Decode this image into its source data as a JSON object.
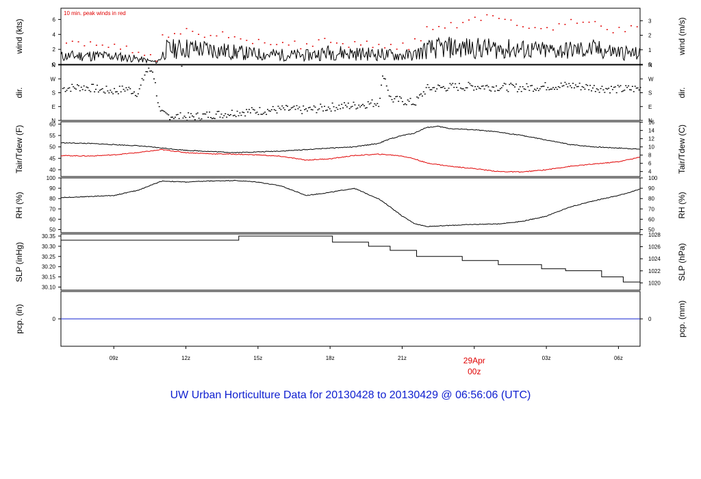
{
  "title": "UW Urban Horticulture Data for 20130428  to  20130429 @ 06:56:06  (UTC)",
  "note": "10 min. peak winds in red",
  "colors": {
    "peak": "#e00000",
    "tdew": "#e00000",
    "line": "#000000",
    "title": "#1020d0",
    "pcp": "#1020d0",
    "day": "#e00000"
  },
  "x_axis": {
    "ticks": [
      {
        "h": 9,
        "label": "09z"
      },
      {
        "h": 12,
        "label": "12z"
      },
      {
        "h": 15,
        "label": "15z"
      },
      {
        "h": 18,
        "label": "18z"
      },
      {
        "h": 21,
        "label": "21z"
      },
      {
        "h": 27,
        "label": "03z"
      },
      {
        "h": 30,
        "label": "06z"
      }
    ],
    "day_marker": {
      "h": 24,
      "date": "29Apr",
      "time": "00z"
    }
  },
  "chart_data": [
    {
      "type": "line",
      "id": "wind",
      "ylabel": "wind (kts)",
      "ylabel_right": "wind (m/s)",
      "ylim": [
        0,
        7.5
      ],
      "yticks": [
        0,
        2,
        4,
        6
      ],
      "ylim_right": [
        0,
        3.86
      ],
      "yticks_right": [
        0,
        1,
        2,
        3
      ],
      "series": [
        {
          "name": "wind",
          "x": [
            6.8,
            8,
            9,
            10,
            10.8,
            11.2,
            12,
            13,
            14,
            15,
            16,
            17,
            18,
            19,
            20,
            21,
            21.5,
            22,
            23,
            24,
            25,
            26,
            27,
            28,
            29,
            30,
            30.9
          ],
          "y": [
            1.2,
            1.3,
            1.2,
            0.8,
            0.3,
            2.2,
            2.4,
            2.2,
            1.8,
            1.5,
            1.4,
            1.3,
            1.8,
            1.6,
            1.5,
            1.3,
            1.4,
            2.2,
            2.5,
            2.4,
            2.3,
            2.2,
            2.0,
            2.1,
            2.2,
            1.8,
            1.5
          ]
        }
      ],
      "peak_winds": {
        "x": [
          7,
          7.5,
          8,
          8.5,
          9,
          9.5,
          10,
          10.5,
          11,
          11.5,
          12,
          12.5,
          13,
          13.5,
          14,
          14.5,
          15,
          15.5,
          16,
          16.5,
          17,
          17.5,
          18,
          18.5,
          19,
          19.5,
          20,
          20.5,
          21,
          21.5,
          22,
          22.5,
          23,
          23.5,
          24,
          24.5,
          25,
          25.5,
          26,
          26.5,
          27,
          27.5,
          28,
          28.5,
          29,
          29.5,
          30,
          30.5
        ],
        "y": [
          3.2,
          2.8,
          3.0,
          2.6,
          2.8,
          2.4,
          1.4,
          1.2,
          3.8,
          4.3,
          4.5,
          4.2,
          4.0,
          4.4,
          3.6,
          3.4,
          3.2,
          3.0,
          3.0,
          2.8,
          3.2,
          3.6,
          3.0,
          2.7,
          2.9,
          3.0,
          2.8,
          2.7,
          2.6,
          3.4,
          4.8,
          5.2,
          5.6,
          6.0,
          6.3,
          6.6,
          6.2,
          5.8,
          5.4,
          5.0,
          5.2,
          5.6,
          6.2,
          5.8,
          5.6,
          4.8,
          5.0,
          5.2
        ]
      }
    },
    {
      "type": "scatter",
      "id": "dir",
      "ylabel": "dir.",
      "ylabel_right": "dir.",
      "ylim": [
        0,
        360
      ],
      "ytick_values": [
        0,
        90,
        180,
        270,
        360
      ],
      "ytick_labels": [
        "N",
        "E",
        "S",
        "W",
        "N"
      ],
      "series": [
        {
          "name": "direction",
          "x": [
            6.8,
            7.5,
            8,
            8.5,
            9,
            9.5,
            10,
            10.3,
            10.6,
            10.9,
            11.5,
            12,
            12.5,
            13,
            13.5,
            14,
            15,
            16,
            17,
            17.5,
            18,
            18.5,
            19,
            19.5,
            20,
            20.2,
            20.5,
            21,
            21.5,
            22,
            23,
            24,
            25,
            26,
            27,
            28,
            29,
            30,
            30.9
          ],
          "y": [
            210,
            220,
            215,
            200,
            195,
            210,
            180,
            320,
            330,
            45,
            30,
            25,
            30,
            40,
            45,
            55,
            65,
            75,
            70,
            80,
            90,
            95,
            100,
            110,
            120,
            310,
            140,
            130,
            115,
            210,
            220,
            225,
            220,
            215,
            225,
            230,
            215,
            205,
            210
          ]
        }
      ]
    },
    {
      "type": "line",
      "id": "temp",
      "ylabel": "Tair/Tdew (F)",
      "ylabel_right": "Tair/Tdew (C)",
      "ylim": [
        37,
        61
      ],
      "yticks": [
        40,
        45,
        50,
        55,
        60
      ],
      "ylim_right": [
        2.78,
        16.11
      ],
      "yticks_right": [
        4,
        6,
        8,
        10,
        12,
        14,
        16
      ],
      "series": [
        {
          "name": "Tair",
          "x": [
            6.8,
            8,
            9,
            10,
            11,
            12,
            13,
            14,
            15,
            16,
            17,
            18,
            19,
            20,
            20.5,
            21,
            21.5,
            22,
            22.5,
            23,
            24,
            25,
            26,
            27,
            28,
            29,
            30,
            30.9
          ],
          "y": [
            51.8,
            51.5,
            51,
            50.5,
            49.5,
            48.5,
            48,
            47.5,
            47.8,
            48.2,
            48.8,
            49.5,
            50,
            51.5,
            53.5,
            55,
            56,
            58.5,
            59,
            58,
            57.5,
            56.5,
            55,
            53,
            51,
            50,
            49.5,
            49
          ]
        },
        {
          "name": "Tdew",
          "x": [
            6.8,
            8,
            9,
            10,
            11,
            12,
            13,
            14,
            15,
            16,
            17,
            18,
            19,
            20,
            20.5,
            21,
            21.5,
            22,
            23,
            24,
            25,
            26,
            27,
            28,
            29,
            30,
            30.9
          ],
          "y": [
            46.2,
            46,
            46.5,
            47.5,
            48.8,
            47.5,
            47,
            46.8,
            46.5,
            45.8,
            44.2,
            44.8,
            46.2,
            46.8,
            46.5,
            46,
            44.8,
            43,
            41.5,
            40.5,
            39.2,
            39,
            40,
            41.5,
            42.5,
            43.5,
            45.5
          ]
        }
      ]
    },
    {
      "type": "line",
      "id": "rh",
      "ylabel": "RH (%)",
      "ylabel_right": "RH (%)",
      "ylim": [
        47,
        100
      ],
      "yticks": [
        50,
        60,
        70,
        80,
        90,
        100
      ],
      "series": [
        {
          "name": "RH",
          "x": [
            6.8,
            8,
            9,
            10,
            11,
            12,
            13,
            14,
            15,
            16,
            17,
            18,
            19,
            20,
            20.5,
            21,
            21.5,
            22,
            23,
            24,
            25,
            26,
            27,
            28,
            29,
            30,
            30.9
          ],
          "y": [
            81,
            82,
            83,
            88,
            97,
            96,
            97,
            97.5,
            96,
            92,
            83,
            86,
            90,
            80,
            72,
            63,
            56,
            53,
            54,
            55,
            55.5,
            58,
            63,
            72,
            78,
            83,
            89
          ]
        }
      ]
    },
    {
      "type": "line",
      "id": "slp",
      "ylabel": "SLP (inHg)",
      "ylabel_right": "SLP (hPa)",
      "ylim": [
        30.085,
        30.36
      ],
      "yticks": [
        30.1,
        30.15,
        30.2,
        30.25,
        30.3,
        30.35
      ],
      "ylim_right": [
        1018.8,
        1028.1
      ],
      "yticks_right": [
        1020,
        1022,
        1024,
        1026,
        1028
      ],
      "series": [
        {
          "name": "SLP",
          "step": true,
          "x": [
            6.8,
            14.2,
            18.1,
            19.6,
            20.5,
            21.6,
            23.5,
            25.0,
            25.8,
            26.8,
            27.8,
            29.3,
            30.2,
            30.9
          ],
          "y": [
            30.33,
            30.35,
            30.32,
            30.3,
            30.28,
            30.25,
            30.23,
            30.21,
            30.21,
            30.19,
            30.18,
            30.15,
            30.125,
            30.1
          ]
        }
      ]
    },
    {
      "type": "line",
      "id": "pcp",
      "ylabel": "pcp. (in)",
      "ylabel_right": "pcp. (mm)",
      "ylim": [
        -1,
        1
      ],
      "yticks": [
        0
      ],
      "yticks_right": [
        0
      ],
      "series": [
        {
          "name": "pcp",
          "x": [
            6.8,
            30.9
          ],
          "y": [
            0,
            0
          ]
        }
      ]
    }
  ]
}
